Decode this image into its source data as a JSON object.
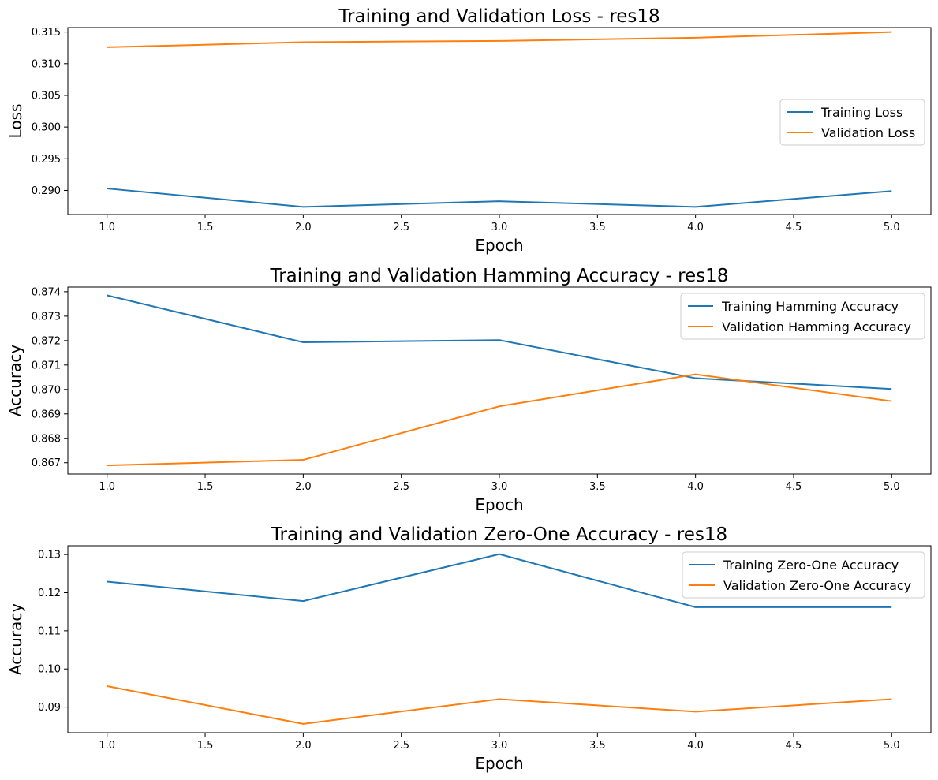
{
  "chart_data": [
    {
      "type": "line",
      "title": "Training and Validation Loss - res18",
      "xlabel": "Epoch",
      "ylabel": "Loss",
      "x": [
        1.0,
        2.0,
        3.0,
        4.0,
        5.0
      ],
      "xlim": [
        0.8,
        5.2
      ],
      "xticks": [
        1.0,
        1.5,
        2.0,
        2.5,
        3.0,
        3.5,
        4.0,
        4.5,
        5.0
      ],
      "xtick_labels": [
        "1.0",
        "1.5",
        "2.0",
        "2.5",
        "3.0",
        "3.5",
        "4.0",
        "4.5",
        "5.0"
      ],
      "ylim": [
        0.2862,
        0.3157
      ],
      "yticks": [
        0.29,
        0.295,
        0.3,
        0.305,
        0.31,
        0.315
      ],
      "ytick_labels": [
        "0.290",
        "0.295",
        "0.300",
        "0.305",
        "0.310",
        "0.315"
      ],
      "legend_position": "center-right",
      "grid": false,
      "series": [
        {
          "name": "Training Loss",
          "color": "#1f77b4",
          "values": [
            0.2903,
            0.2874,
            0.2883,
            0.2874,
            0.2899
          ]
        },
        {
          "name": "Validation Loss",
          "color": "#ff7f0e",
          "values": [
            0.3126,
            0.3134,
            0.3136,
            0.3141,
            0.315
          ]
        }
      ]
    },
    {
      "type": "line",
      "title": "Training and Validation Hamming Accuracy - res18",
      "xlabel": "Epoch",
      "ylabel": "Accuracy",
      "x": [
        1.0,
        2.0,
        3.0,
        4.0,
        5.0
      ],
      "xlim": [
        0.8,
        5.2
      ],
      "xticks": [
        1.0,
        1.5,
        2.0,
        2.5,
        3.0,
        3.5,
        4.0,
        4.5,
        5.0
      ],
      "xtick_labels": [
        "1.0",
        "1.5",
        "2.0",
        "2.5",
        "3.0",
        "3.5",
        "4.0",
        "4.5",
        "5.0"
      ],
      "ylim": [
        0.86654,
        0.87419
      ],
      "yticks": [
        0.867,
        0.868,
        0.869,
        0.87,
        0.871,
        0.872,
        0.873,
        0.874
      ],
      "ytick_labels": [
        "0.867",
        "0.868",
        "0.869",
        "0.870",
        "0.871",
        "0.872",
        "0.873",
        "0.874"
      ],
      "legend_position": "upper-right",
      "grid": false,
      "series": [
        {
          "name": "Training Hamming Accuracy",
          "color": "#1f77b4",
          "values": [
            0.87385,
            0.87193,
            0.87202,
            0.87046,
            0.87002
          ]
        },
        {
          "name": "Validation Hamming Accuracy",
          "color": "#ff7f0e",
          "values": [
            0.86689,
            0.86712,
            0.86931,
            0.87062,
            0.86952
          ]
        }
      ]
    },
    {
      "type": "line",
      "title": "Training and Validation Zero-One Accuracy - res18",
      "xlabel": "Epoch",
      "ylabel": "Accuracy",
      "x": [
        1.0,
        2.0,
        3.0,
        4.0,
        5.0
      ],
      "xlim": [
        0.8,
        5.2
      ],
      "xticks": [
        1.0,
        1.5,
        2.0,
        2.5,
        3.0,
        3.5,
        4.0,
        4.5,
        5.0
      ],
      "xtick_labels": [
        "1.0",
        "1.5",
        "2.0",
        "2.5",
        "3.0",
        "3.5",
        "4.0",
        "4.5",
        "5.0"
      ],
      "ylim": [
        0.0833,
        0.1323
      ],
      "yticks": [
        0.09,
        0.1,
        0.11,
        0.12,
        0.13
      ],
      "ytick_labels": [
        "0.09",
        "0.10",
        "0.11",
        "0.12",
        "0.13"
      ],
      "legend_position": "upper-right",
      "grid": false,
      "series": [
        {
          "name": "Training Zero-One Accuracy",
          "color": "#1f77b4",
          "values": [
            0.1229,
            0.1178,
            0.1301,
            0.1162,
            0.1162
          ]
        },
        {
          "name": "Validation Zero-One Accuracy",
          "color": "#ff7f0e",
          "values": [
            0.0955,
            0.0856,
            0.0921,
            0.0888,
            0.0921
          ]
        }
      ]
    }
  ]
}
